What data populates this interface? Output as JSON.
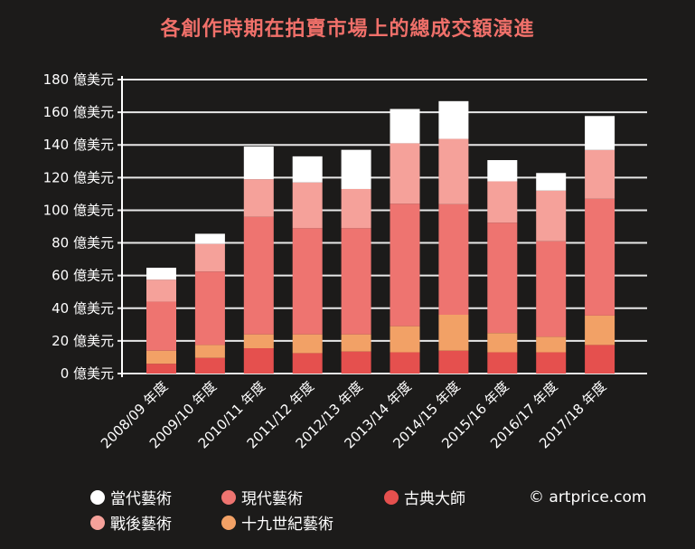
{
  "chart_data": {
    "type": "bar",
    "stacked": true,
    "title": "各創作時期在拍賣市場上的總成交額演進",
    "xlabel": "",
    "ylabel": "",
    "ylim": [
      0,
      180
    ],
    "y_unit_suffix": " 億美元",
    "yticks": [
      0,
      20,
      40,
      60,
      80,
      100,
      120,
      140,
      160,
      180
    ],
    "ytick_labels": [
      "0 億美元",
      "20 億美元",
      "40 億美元",
      "60 億美元",
      "80 億美元",
      "100 億美元",
      "120 億美元",
      "140 億美元",
      "160 億美元",
      "180 億美元"
    ],
    "grid": true,
    "categories": [
      "2008/09 年度",
      "2009/10 年度",
      "2010/11 年度",
      "2011/12 年度",
      "2012/13 年度",
      "2013/14 年度",
      "2014/15 年度",
      "2015/16 年度",
      "2016/17 年度",
      "2017/18 年度"
    ],
    "series": [
      {
        "name": "古典大師",
        "color": "#e5504e",
        "values": [
          6,
          9.6,
          15.5,
          12.5,
          13.5,
          13,
          14,
          13,
          13,
          17.5
        ]
      },
      {
        "name": "十九世紀藝術",
        "color": "#f2a166",
        "values": [
          8,
          7.9,
          8.5,
          11.5,
          10.5,
          16,
          22,
          11.8,
          9.5,
          18
        ]
      },
      {
        "name": "現代藝術",
        "color": "#ee7470",
        "values": [
          30,
          45,
          72,
          65,
          65,
          75,
          67.7,
          67.6,
          58.5,
          71.5
        ]
      },
      {
        "name": "戰後藝術",
        "color": "#f5a19a",
        "values": [
          13.5,
          16.9,
          23,
          28,
          24,
          37,
          40,
          25.3,
          31,
          29.9
        ]
      },
      {
        "name": "當代藝術",
        "color": "#ffffff",
        "values": [
          7.3,
          6.2,
          20,
          16,
          24,
          21,
          23.1,
          13,
          10.8,
          20.8
        ]
      }
    ],
    "legend_position": "bottom",
    "legend_order": [
      "當代藝術",
      "現代藝術",
      "古典大師",
      "戰後藝術",
      "十九世紀藝術"
    ],
    "title_color": "#f0706a",
    "background": "#1c1b1a"
  },
  "credit": "© artprice.com"
}
